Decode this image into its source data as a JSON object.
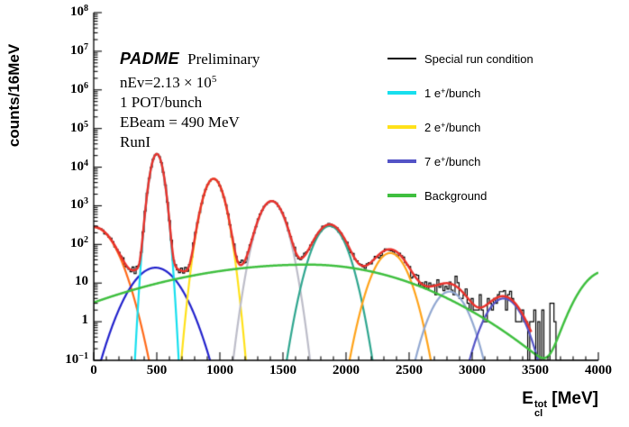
{
  "chart_data": {
    "type": "histogram+fit",
    "ylabel": "counts/16MeV",
    "xlabel_parts": {
      "base": "E",
      "sup": "tot",
      "sub": "cl",
      "unit": " [MeV]"
    },
    "xlim": [
      0,
      4000
    ],
    "ylog": true,
    "ylim": [
      0.1,
      100000000
    ],
    "x_ticks": [
      0,
      500,
      1000,
      1500,
      2000,
      2500,
      3000,
      3500,
      4000
    ],
    "x_minor_step": 100,
    "y_tick_exponents": [
      -1,
      0,
      1,
      2,
      3,
      4,
      5,
      6,
      7,
      8
    ],
    "annotations": {
      "padme": "PADME",
      "preliminary": "Preliminary",
      "nev_pre": "nEv=2.13 × 10",
      "nev_exp": "5",
      "pot": "1 POT/bunch",
      "ebeam": "EBeam = 490 MeV",
      "run": "RunI"
    },
    "legend": [
      {
        "pre": "Special run condition",
        "sup": "",
        "post": "",
        "color": "#000000",
        "lw": 1.5
      },
      {
        "pre": "1 e",
        "sup": "+",
        "post": "/bunch",
        "color": "#17dfee",
        "lw": 4
      },
      {
        "pre": "2 e",
        "sup": "+",
        "post": "/bunch",
        "color": "#ffe11a",
        "lw": 4
      },
      {
        "pre": "7 e",
        "sup": "+",
        "post": "/bunch",
        "color": "#5353c6",
        "lw": 4
      },
      {
        "pre": "Background",
        "sup": "",
        "post": "",
        "color": "#3fbf3f",
        "lw": 4
      }
    ],
    "components": [
      {
        "name": "beam-left-peak",
        "color": "#ff6a1a",
        "A": 280,
        "mu": 0,
        "sigma": 110
      },
      {
        "name": "broad-blue",
        "color": "#2222cc",
        "A": 25,
        "mu": 490,
        "sigma": 130
      },
      {
        "name": "1e-bunch-peak",
        "color": "#17dfee",
        "A": 22000,
        "mu": 500,
        "sigma": 35
      },
      {
        "name": "2e-bunch-peak",
        "color": "#ffe11a",
        "A": 5000,
        "mu": 950,
        "sigma": 55
      },
      {
        "name": "3e-bunch-peak",
        "color": "#bdbdc9",
        "A": 1300,
        "mu": 1410,
        "sigma": 70
      },
      {
        "name": "4e-bunch-peak",
        "color": "#2fa68f",
        "A": 300,
        "mu": 1870,
        "sigma": 85
      },
      {
        "name": "5e-bunch-peak",
        "color": "#ffa31a",
        "A": 60,
        "mu": 2350,
        "sigma": 90
      },
      {
        "name": "6e-bunch-peak",
        "color": "#92a8d1",
        "A": 6,
        "mu": 2820,
        "sigma": 95
      },
      {
        "name": "7e-bunch-peak",
        "color": "#5353c6",
        "A": 4,
        "mu": 3250,
        "sigma": 100
      }
    ],
    "background": {
      "color": "#3fbf3f",
      "lw": 2.5,
      "parts": [
        {
          "A": 30,
          "mu": 1700,
          "sigma_l": 800,
          "sigma_r": 550
        },
        {
          "A": 20,
          "mu": 4050,
          "sigma_l": 130,
          "sigma_r": 130
        }
      ]
    },
    "total_fit": {
      "color": "#e8322c",
      "lw": 2.5,
      "x_max": 3470
    },
    "histogram": {
      "color": "#000000",
      "lw": 1.2,
      "bin_width": 16,
      "seed": 11,
      "tail_from": 3460,
      "tail_bins": [
        [
          3472,
          1
        ],
        [
          3488,
          2
        ],
        [
          3520,
          1
        ],
        [
          3552,
          2
        ],
        [
          3616,
          3
        ],
        [
          3632,
          3
        ],
        [
          3648,
          1
        ]
      ]
    }
  }
}
